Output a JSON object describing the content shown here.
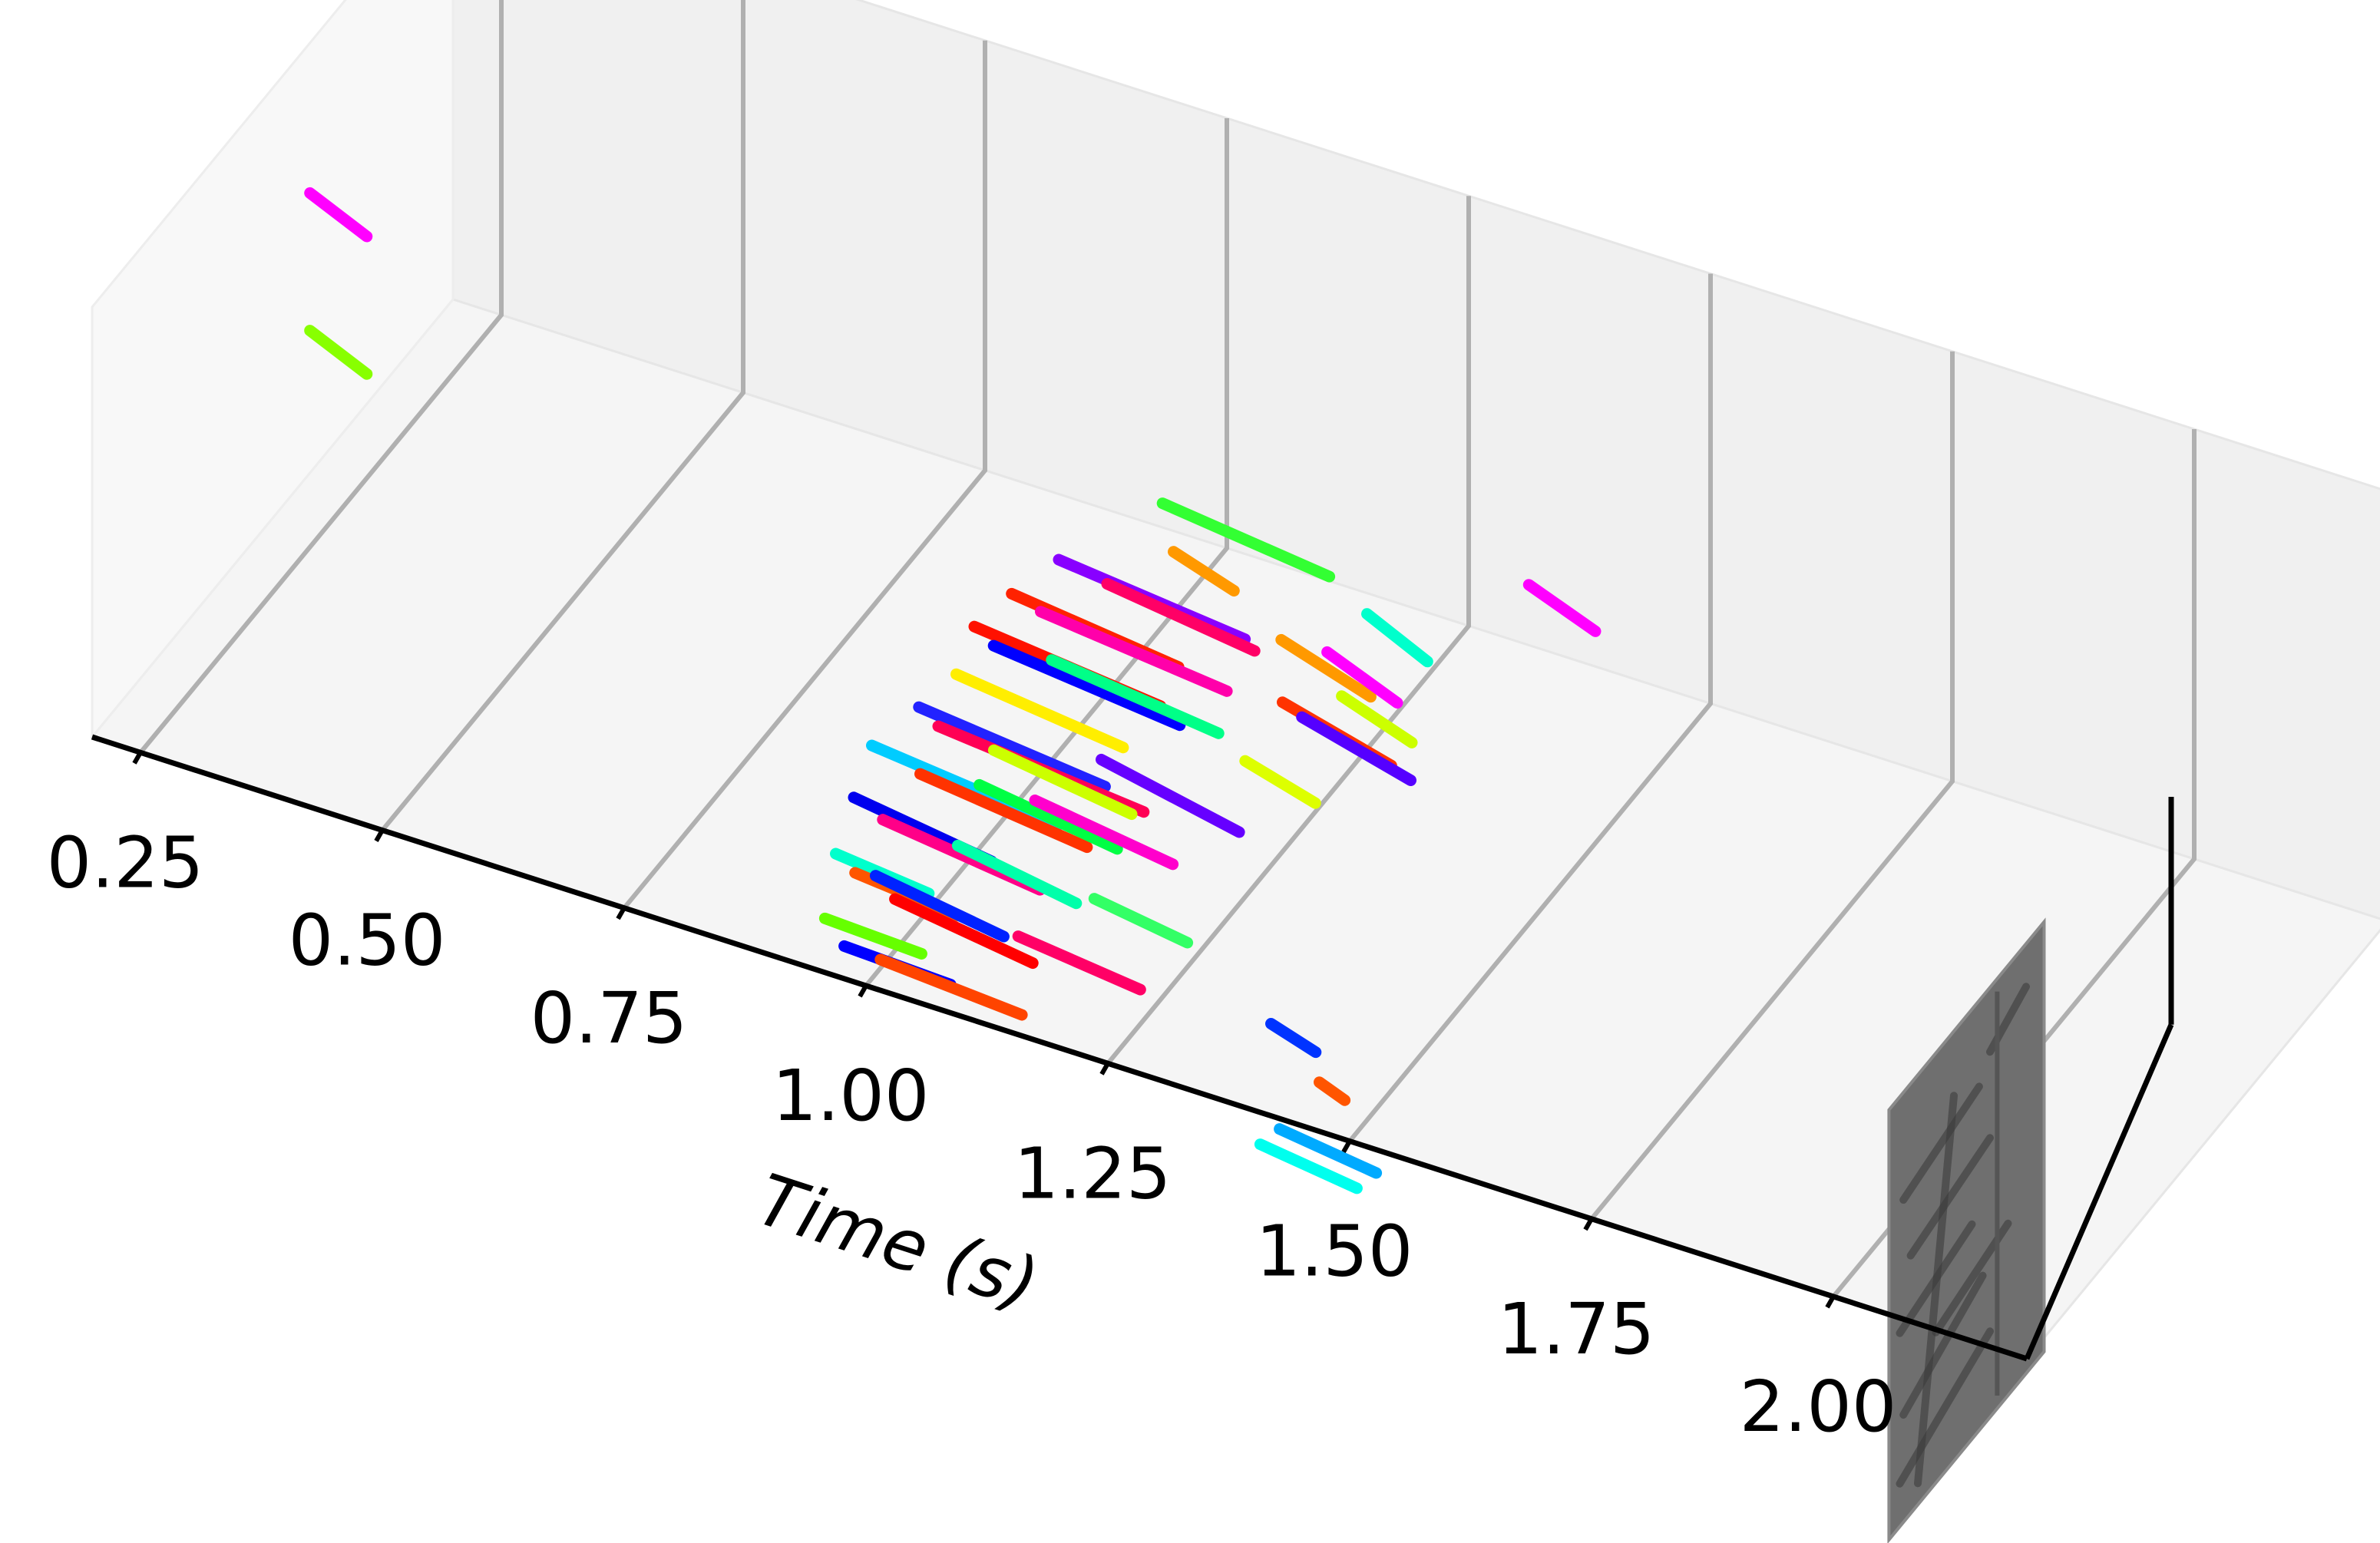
{
  "chart_data": {
    "type": "scatter",
    "title": "",
    "xlabel": "Time (s)",
    "ylabel": "",
    "zlabel": "",
    "projection": "3d",
    "xlim": [
      0.2,
      2.2
    ],
    "ylim": [
      0,
      1
    ],
    "zlim": [
      0,
      1
    ],
    "xticks": [
      "0.25",
      "0.50",
      "0.75",
      "1.00",
      "1.25",
      "1.50",
      "1.75",
      "2.00"
    ],
    "grid": true,
    "legend": "none",
    "pane_color": "#f2f2f2",
    "grid_color": "#b0b0b0",
    "frame_image_time": 2.05,
    "segments": [
      {
        "t": [
          0.22,
          0.29
        ],
        "y": [
          0.55,
          0.52
        ],
        "z": [
          0.72,
          0.7
        ],
        "color": "#ff00ff"
      },
      {
        "t": [
          0.22,
          0.29
        ],
        "y": [
          0.55,
          0.52
        ],
        "z": [
          0.4,
          0.38
        ],
        "color": "#88ff00"
      },
      {
        "t": [
          1.48,
          1.56
        ],
        "y": [
          0.55,
          0.52
        ],
        "z": [
          0.72,
          0.7
        ],
        "color": "#ff00ff"
      },
      {
        "t": [
          1.12,
          1.3
        ],
        "y": [
          0.5,
          0.48
        ],
        "z": [
          0.7,
          0.68
        ],
        "color": "#33ff33"
      },
      {
        "t": [
          1.05,
          1.25
        ],
        "y": [
          0.4,
          0.38
        ],
        "z": [
          0.62,
          0.6
        ],
        "color": "#8800ff"
      },
      {
        "t": [
          1.1,
          1.26
        ],
        "y": [
          0.4,
          0.38
        ],
        "z": [
          0.6,
          0.58
        ],
        "color": "#ff0066"
      },
      {
        "t": [
          1.15,
          1.22
        ],
        "y": [
          0.45,
          0.43
        ],
        "z": [
          0.66,
          0.64
        ],
        "color": "#ff9900"
      },
      {
        "t": [
          1.35,
          1.42
        ],
        "y": [
          0.45,
          0.43
        ],
        "z": [
          0.66,
          0.62
        ],
        "color": "#00ffcc"
      },
      {
        "t": [
          1.02,
          1.2
        ],
        "y": [
          0.35,
          0.33
        ],
        "z": [
          0.57,
          0.55
        ],
        "color": "#ff2200"
      },
      {
        "t": [
          1.05,
          1.25
        ],
        "y": [
          0.35,
          0.33
        ],
        "z": [
          0.55,
          0.53
        ],
        "color": "#ff00aa"
      },
      {
        "t": [
          1.28,
          1.38
        ],
        "y": [
          0.4,
          0.38
        ],
        "z": [
          0.6,
          0.56
        ],
        "color": "#ff9900"
      },
      {
        "t": [
          1.32,
          1.4
        ],
        "y": [
          0.42,
          0.4
        ],
        "z": [
          0.58,
          0.54
        ],
        "color": "#ff00ff"
      },
      {
        "t": [
          1.0,
          1.2
        ],
        "y": [
          0.3,
          0.28
        ],
        "z": [
          0.53,
          0.51
        ],
        "color": "#ff1100"
      },
      {
        "t": [
          1.02,
          1.22
        ],
        "y": [
          0.3,
          0.28
        ],
        "z": [
          0.5,
          0.48
        ],
        "color": "#0000ff"
      },
      {
        "t": [
          1.0,
          1.18
        ],
        "y": [
          0.25,
          0.23
        ],
        "z": [
          0.47,
          0.45
        ],
        "color": "#ffee00"
      },
      {
        "t": [
          1.08,
          1.26
        ],
        "y": [
          0.3,
          0.28
        ],
        "z": [
          0.51,
          0.49
        ],
        "color": "#00ff88"
      },
      {
        "t": [
          1.3,
          1.42
        ],
        "y": [
          0.35,
          0.33
        ],
        "z": [
          0.52,
          0.48
        ],
        "color": "#ff3300"
      },
      {
        "t": [
          1.32,
          1.44
        ],
        "y": [
          0.35,
          0.33
        ],
        "z": [
          0.5,
          0.46
        ],
        "color": "#5500ff"
      },
      {
        "t": [
          1.35,
          1.43
        ],
        "y": [
          0.38,
          0.36
        ],
        "z": [
          0.54,
          0.51
        ],
        "color": "#ccff00"
      },
      {
        "t": [
          0.98,
          1.18
        ],
        "y": [
          0.2,
          0.18
        ],
        "z": [
          0.43,
          0.41
        ],
        "color": "#2222ff"
      },
      {
        "t": [
          1.0,
          1.22
        ],
        "y": [
          0.2,
          0.18
        ],
        "z": [
          0.4,
          0.38
        ],
        "color": "#ff0055"
      },
      {
        "t": [
          1.05,
          1.2
        ],
        "y": [
          0.22,
          0.2
        ],
        "z": [
          0.36,
          0.34
        ],
        "color": "#ccff00"
      },
      {
        "t": [
          1.15,
          1.3
        ],
        "y": [
          0.25,
          0.23
        ],
        "z": [
          0.38,
          0.34
        ],
        "color": "#6600ff"
      },
      {
        "t": [
          1.28,
          1.36
        ],
        "y": [
          0.3,
          0.28
        ],
        "z": [
          0.42,
          0.4
        ],
        "color": "#ddff00"
      },
      {
        "t": [
          0.95,
          1.15
        ],
        "y": [
          0.15,
          0.13
        ],
        "z": [
          0.37,
          0.35
        ],
        "color": "#00ccff"
      },
      {
        "t": [
          1.0,
          1.18
        ],
        "y": [
          0.15,
          0.13
        ],
        "z": [
          0.34,
          0.32
        ],
        "color": "#ff3300"
      },
      {
        "t": [
          1.05,
          1.2
        ],
        "y": [
          0.18,
          0.16
        ],
        "z": [
          0.32,
          0.3
        ],
        "color": "#00ff44"
      },
      {
        "t": [
          1.1,
          1.25
        ],
        "y": [
          0.2,
          0.18
        ],
        "z": [
          0.3,
          0.28
        ],
        "color": "#ff00cc"
      },
      {
        "t": [
          0.95,
          1.1
        ],
        "y": [
          0.1,
          0.08
        ],
        "z": [
          0.3,
          0.28
        ],
        "color": "#0000ee"
      },
      {
        "t": [
          0.98,
          1.15
        ],
        "y": [
          0.1,
          0.08
        ],
        "z": [
          0.27,
          0.25
        ],
        "color": "#ff0088"
      },
      {
        "t": [
          1.05,
          1.18
        ],
        "y": [
          0.12,
          0.1
        ],
        "z": [
          0.24,
          0.22
        ],
        "color": "#00ffaa"
      },
      {
        "t": [
          0.95,
          1.05
        ],
        "y": [
          0.05,
          0.04
        ],
        "z": [
          0.22,
          0.21
        ],
        "color": "#00ffcc"
      },
      {
        "t": [
          0.97,
          1.08
        ],
        "y": [
          0.05,
          0.04
        ],
        "z": [
          0.19,
          0.18
        ],
        "color": "#ff5500"
      },
      {
        "t": [
          0.98,
          1.12
        ],
        "y": [
          0.08,
          0.06
        ],
        "z": [
          0.16,
          0.14
        ],
        "color": "#0022ff"
      },
      {
        "t": [
          1.0,
          1.15
        ],
        "y": [
          0.08,
          0.06
        ],
        "z": [
          0.12,
          0.1
        ],
        "color": "#ff0000"
      },
      {
        "t": [
          0.95,
          1.05
        ],
        "y": [
          0.02,
          0.02
        ],
        "z": [
          0.1,
          0.09
        ],
        "color": "#66ff00"
      },
      {
        "t": [
          0.97,
          1.08
        ],
        "y": [
          0.02,
          0.02
        ],
        "z": [
          0.05,
          0.04
        ],
        "color": "#0000ff"
      },
      {
        "t": [
          1.0,
          1.15
        ],
        "y": [
          0.04,
          0.03
        ],
        "z": [
          0.02,
          0.01
        ],
        "color": "#ff4400"
      },
      {
        "t": [
          1.12,
          1.25
        ],
        "y": [
          0.1,
          0.09
        ],
        "z": [
          0.1,
          0.08
        ],
        "color": "#ff0066"
      },
      {
        "t": [
          1.18,
          1.28
        ],
        "y": [
          0.15,
          0.14
        ],
        "z": [
          0.18,
          0.16
        ],
        "color": "#33ff66"
      },
      {
        "t": [
          1.4,
          1.45
        ],
        "y": [
          0.05,
          0.04
        ],
        "z": [
          0.15,
          0.13
        ],
        "color": "#0033ff"
      },
      {
        "t": [
          1.45,
          1.48
        ],
        "y": [
          0.05,
          0.04
        ],
        "z": [
          0.05,
          0.04
        ],
        "color": "#ff5500"
      },
      {
        "t": [
          1.42,
          1.52
        ],
        "y": [
          0.02,
          0.02
        ],
        "z": [
          -0.05,
          -0.08
        ],
        "color": "#00aaff"
      },
      {
        "t": [
          1.4,
          1.5
        ],
        "y": [
          0.02,
          0.02
        ],
        "z": [
          -0.1,
          -0.13
        ],
        "color": "#00ffee"
      }
    ]
  }
}
